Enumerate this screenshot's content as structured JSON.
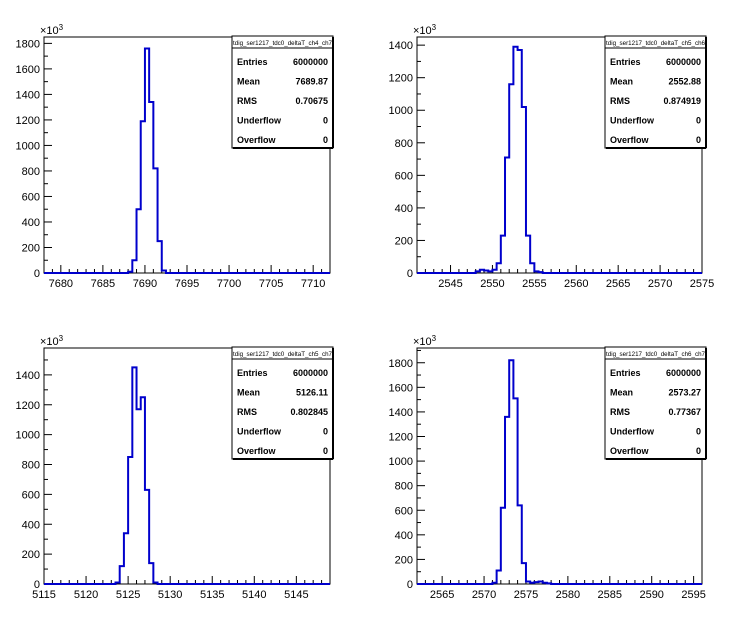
{
  "colors": {
    "histogram": "#0000cc",
    "axis": "#000000",
    "background": "#ffffff"
  },
  "chart_data": [
    {
      "type": "histogram",
      "stats_title": "tdig_ser1217_tdc0_deltaT_ch4_ch7",
      "multiplier": "×10",
      "multiplier_exp": "3",
      "stats": [
        {
          "label": "Entries",
          "value": "6000000"
        },
        {
          "label": "Mean",
          "value": "7689.87"
        },
        {
          "label": "RMS",
          "value": "0.70675"
        },
        {
          "label": "Underflow",
          "value": "0"
        },
        {
          "label": "Overflow",
          "value": "0"
        }
      ],
      "xlim": [
        7678,
        7712
      ],
      "ylim": [
        0,
        1850
      ],
      "xticks": [
        7680,
        7685,
        7690,
        7695,
        7700,
        7705,
        7710
      ],
      "yticks": [
        0,
        200,
        400,
        600,
        800,
        1000,
        1200,
        1400,
        1600,
        1800
      ],
      "ytick_labels": [
        "0",
        "200",
        "400",
        "600",
        "800",
        "1000",
        "1200",
        "1400",
        "1600",
        "1800"
      ],
      "bin_width": 0.5,
      "bins_x": [
        7688.0,
        7688.5,
        7689.0,
        7689.5,
        7690.0,
        7690.5,
        7691.0,
        7691.5,
        7692.0
      ],
      "bins_y": [
        10,
        100,
        500,
        1190,
        1760,
        1340,
        820,
        250,
        20
      ]
    },
    {
      "type": "histogram",
      "stats_title": "tdig_ser1217_tdc0_deltaT_ch5_ch6",
      "multiplier": "×10",
      "multiplier_exp": "3",
      "stats": [
        {
          "label": "Entries",
          "value": "6000000"
        },
        {
          "label": "Mean",
          "value": "2552.88"
        },
        {
          "label": "RMS",
          "value": "0.874919"
        },
        {
          "label": "Underflow",
          "value": "0"
        },
        {
          "label": "Overflow",
          "value": "0"
        }
      ],
      "xlim": [
        2541,
        2575
      ],
      "ylim": [
        0,
        1450
      ],
      "xticks": [
        2545,
        2550,
        2555,
        2560,
        2565,
        2570,
        2575
      ],
      "yticks": [
        0,
        200,
        400,
        600,
        800,
        1000,
        1200,
        1400
      ],
      "ytick_labels": [
        "0",
        "200",
        "400",
        "600",
        "800",
        "1000",
        "1200",
        "1400"
      ],
      "bin_width": 0.5,
      "bins_x": [
        2548.0,
        2548.5,
        2549.0,
        2549.5,
        2550.0,
        2550.5,
        2551.0,
        2551.5,
        2552.0,
        2552.5,
        2553.0,
        2553.5,
        2554.0,
        2554.5,
        2555.0,
        2555.5
      ],
      "bins_y": [
        10,
        20,
        15,
        10,
        20,
        60,
        230,
        710,
        1160,
        1390,
        1370,
        1020,
        230,
        60,
        10,
        5
      ]
    },
    {
      "type": "histogram",
      "stats_title": "tdig_ser1217_tdc0_deltaT_ch5_ch7",
      "multiplier": "×10",
      "multiplier_exp": "3",
      "stats": [
        {
          "label": "Entries",
          "value": "6000000"
        },
        {
          "label": "Mean",
          "value": "5126.11"
        },
        {
          "label": "RMS",
          "value": "0.802845"
        },
        {
          "label": "Underflow",
          "value": "0"
        },
        {
          "label": "Overflow",
          "value": "0"
        }
      ],
      "xlim": [
        5115,
        5149
      ],
      "ylim": [
        0,
        1580
      ],
      "xticks": [
        5115,
        5120,
        5125,
        5130,
        5135,
        5140,
        5145
      ],
      "yticks": [
        0,
        200,
        400,
        600,
        800,
        1000,
        1200,
        1400
      ],
      "ytick_labels": [
        "0",
        "200",
        "400",
        "600",
        "800",
        "1000",
        "1200",
        "1400"
      ],
      "bin_width": 0.5,
      "bins_x": [
        5123.5,
        5124.0,
        5124.5,
        5125.0,
        5125.5,
        5126.0,
        5126.5,
        5127.0,
        5127.5,
        5128.0
      ],
      "bins_y": [
        10,
        120,
        340,
        850,
        1450,
        1170,
        1250,
        630,
        140,
        10
      ]
    },
    {
      "type": "histogram",
      "stats_title": "tdig_ser1217_tdc0_deltaT_ch6_ch7",
      "multiplier": "×10",
      "multiplier_exp": "3",
      "stats": [
        {
          "label": "Entries",
          "value": "6000000"
        },
        {
          "label": "Mean",
          "value": "2573.27"
        },
        {
          "label": "RMS",
          "value": "0.77367"
        },
        {
          "label": "Underflow",
          "value": "0"
        },
        {
          "label": "Overflow",
          "value": "0"
        }
      ],
      "xlim": [
        2562,
        2596
      ],
      "ylim": [
        0,
        1920
      ],
      "xticks": [
        2565,
        2570,
        2575,
        2580,
        2585,
        2590,
        2595
      ],
      "yticks": [
        0,
        200,
        400,
        600,
        800,
        1000,
        1200,
        1400,
        1600,
        1800
      ],
      "ytick_labels": [
        "0",
        "200",
        "400",
        "600",
        "800",
        "1000",
        "1200",
        "1400",
        "1600",
        "1800"
      ],
      "bin_width": 0.5,
      "bins_x": [
        2571.0,
        2571.5,
        2572.0,
        2572.5,
        2573.0,
        2573.5,
        2574.0,
        2574.5,
        2575.0,
        2575.5,
        2576.0,
        2576.5,
        2577.0,
        2577.5
      ],
      "bins_y": [
        10,
        110,
        620,
        1360,
        1820,
        1510,
        640,
        170,
        20,
        10,
        15,
        20,
        10,
        5
      ]
    }
  ]
}
